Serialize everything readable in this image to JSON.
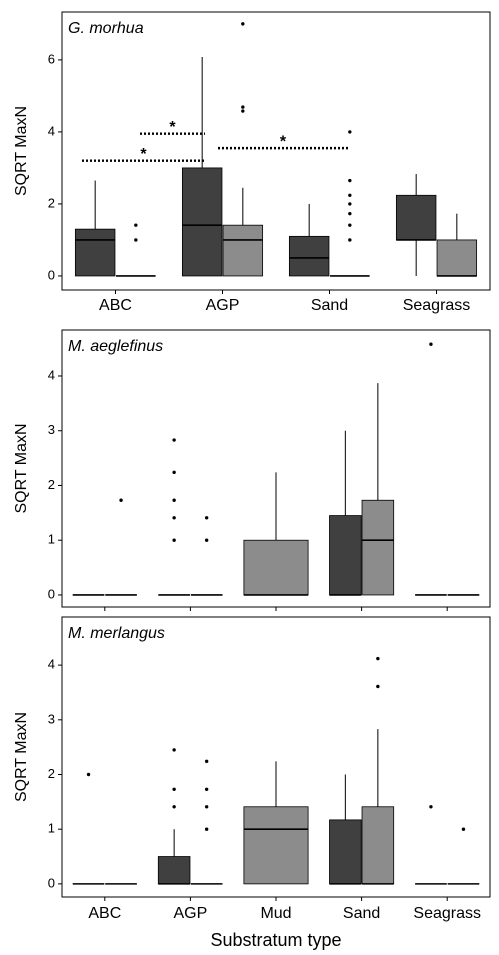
{
  "chart_data": [
    {
      "type": "box",
      "title": "G. morhua",
      "ylabel": "SQRT MaxN",
      "categories": [
        "ABC",
        "AGP",
        "Sand",
        "Seagrass"
      ],
      "ylim": [
        -0.39,
        7.33
      ],
      "yticks": [
        0,
        2,
        4,
        6
      ],
      "series": [
        {
          "color": "#404040",
          "values": [
            {
              "low": 0,
              "q1": 0,
              "median": 1,
              "q3": 1.3,
              "high": 2.65,
              "outliers": []
            },
            {
              "low": 0,
              "q1": 0,
              "median": 1.41,
              "q3": 3,
              "high": 6.08,
              "outliers": []
            },
            {
              "low": 0,
              "q1": 0,
              "median": 0.5,
              "q3": 1.1,
              "high": 2,
              "outliers": []
            },
            {
              "low": 0,
              "q1": 1,
              "median": 1,
              "q3": 2.24,
              "high": 2.83,
              "outliers": []
            }
          ]
        },
        {
          "color": "#8c8c8c",
          "values": [
            {
              "low": 0,
              "q1": 0,
              "median": 0,
              "q3": 0,
              "high": 0,
              "outliers": [
                1,
                1.41
              ]
            },
            {
              "low": 0,
              "q1": 0,
              "median": 1,
              "q3": 1.41,
              "high": 2.45,
              "outliers": [
                4.58,
                4.69,
                7
              ]
            },
            {
              "low": 0,
              "q1": 0,
              "median": 0,
              "q3": 0,
              "high": 0,
              "outliers": [
                1,
                1.41,
                1.73,
                2,
                2.24,
                2.65,
                4
              ]
            },
            {
              "low": 0,
              "q1": 0,
              "median": 0,
              "q3": 1,
              "high": 1.73,
              "outliers": []
            }
          ]
        }
      ],
      "annotations": [
        {
          "text": "*",
          "y": 3.95
        },
        {
          "text": "*",
          "y": 3.2
        },
        {
          "text": "*",
          "y": 3.55
        }
      ]
    },
    {
      "type": "box",
      "title": "M. aeglefinus",
      "ylabel": "SQRT MaxN",
      "categories": [
        null,
        null,
        null,
        null,
        null
      ],
      "ylim": [
        -0.22,
        4.84
      ],
      "yticks": [
        0,
        1,
        2,
        3,
        4
      ],
      "series": [
        {
          "color": "#404040",
          "values": [
            {
              "low": 0,
              "q1": 0,
              "median": 0,
              "q3": 0,
              "high": 0,
              "outliers": []
            },
            {
              "low": 0,
              "q1": 0,
              "median": 0,
              "q3": 0,
              "high": 0,
              "outliers": [
                1,
                1.41,
                1.73,
                2.24,
                2.83
              ]
            },
            null,
            {
              "low": 0,
              "q1": 0,
              "median": 0,
              "q3": 1.45,
              "high": 3,
              "outliers": []
            },
            {
              "low": 0,
              "q1": 0,
              "median": 0,
              "q3": 0,
              "high": 0,
              "outliers": [
                4.58
              ]
            }
          ]
        },
        {
          "color": "#8c8c8c",
          "values": [
            {
              "low": 0,
              "q1": 0,
              "median": 0,
              "q3": 0,
              "high": 0,
              "outliers": [
                1.73
              ]
            },
            {
              "low": 0,
              "q1": 0,
              "median": 0,
              "q3": 0,
              "high": 0,
              "outliers": [
                1,
                1.41
              ]
            },
            {
              "low": 0,
              "q1": 0,
              "median": 0,
              "q3": 1,
              "high": 2.24,
              "outliers": []
            },
            {
              "low": 0,
              "q1": 0,
              "median": 1,
              "q3": 1.73,
              "high": 3.87,
              "outliers": []
            },
            {
              "low": 0,
              "q1": 0,
              "median": 0,
              "q3": 0,
              "high": 0,
              "outliers": []
            }
          ]
        }
      ]
    },
    {
      "type": "box",
      "title": "M. merlangus",
      "ylabel": "SQRT MaxN",
      "xlabel": "Substratum type",
      "categories": [
        "ABC",
        "AGP",
        "Mud",
        "Sand",
        "Seagrass"
      ],
      "ylim": [
        -0.24,
        4.88
      ],
      "yticks": [
        0,
        1,
        2,
        3,
        4
      ],
      "series": [
        {
          "color": "#404040",
          "values": [
            {
              "low": 0,
              "q1": 0,
              "median": 0,
              "q3": 0,
              "high": 0,
              "outliers": [
                2
              ]
            },
            {
              "low": 0,
              "q1": 0,
              "median": 0,
              "q3": 0.5,
              "high": 1,
              "outliers": [
                1.41,
                1.73,
                2.45
              ]
            },
            null,
            {
              "low": 0,
              "q1": 0,
              "median": 0,
              "q3": 1.17,
              "high": 2,
              "outliers": []
            },
            {
              "low": 0,
              "q1": 0,
              "median": 0,
              "q3": 0,
              "high": 0,
              "outliers": [
                1.41
              ]
            }
          ]
        },
        {
          "color": "#8c8c8c",
          "values": [
            {
              "low": 0,
              "q1": 0,
              "median": 0,
              "q3": 0,
              "high": 0,
              "outliers": []
            },
            {
              "low": 0,
              "q1": 0,
              "median": 0,
              "q3": 0,
              "high": 0,
              "outliers": [
                1,
                1.41,
                1.73,
                2.24
              ]
            },
            {
              "low": 0,
              "q1": 0,
              "median": 1,
              "q3": 1.41,
              "high": 2.24,
              "outliers": []
            },
            {
              "low": 0,
              "q1": 0,
              "median": 0,
              "q3": 1.41,
              "high": 2.83,
              "outliers": [
                3.61,
                4.12
              ]
            },
            {
              "low": 0,
              "q1": 0,
              "median": 0,
              "q3": 0,
              "high": 0,
              "outliers": [
                1
              ]
            }
          ]
        }
      ]
    }
  ]
}
